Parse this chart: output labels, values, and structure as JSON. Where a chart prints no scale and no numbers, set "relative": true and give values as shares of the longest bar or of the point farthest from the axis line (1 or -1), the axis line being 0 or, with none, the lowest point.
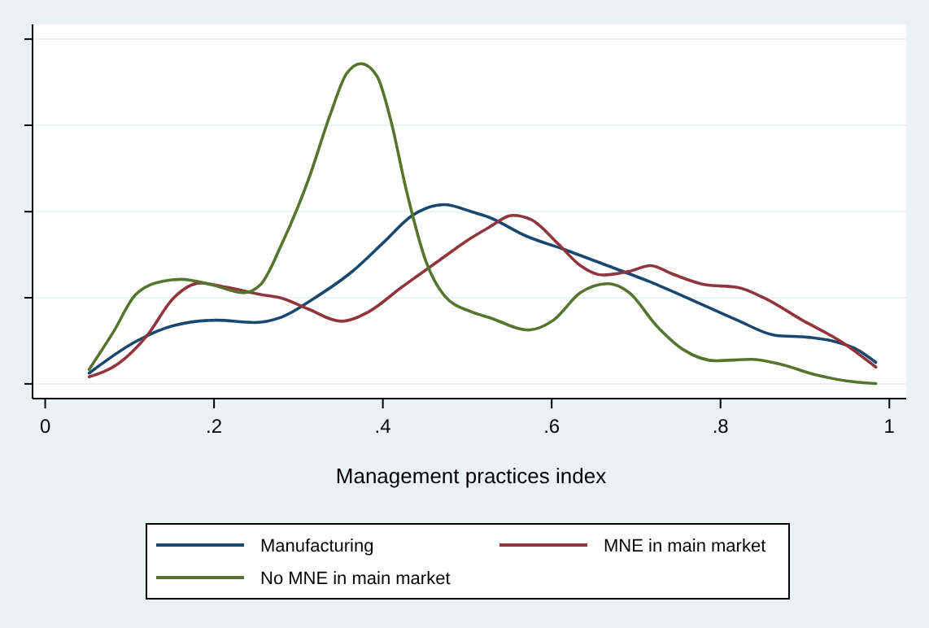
{
  "chart_data": {
    "type": "line",
    "xlabel": "Management practices index",
    "relative": true,
    "grid": "y",
    "legend": "bottom",
    "xlim": [
      -0.015,
      1.02
    ],
    "xticks": [
      0,
      {
        "value": 0.2,
        "label": ".2"
      },
      {
        "value": 0.4,
        "label": ".4"
      },
      {
        "value": 0.6,
        "label": ".6"
      },
      {
        "value": 0.8,
        "label": ".8"
      },
      1
    ],
    "series": [
      {
        "name": "Manufacturing",
        "color": "#1a476f",
        "x": [
          0.052,
          0.107,
          0.152,
          0.203,
          0.248,
          0.28,
          0.319,
          0.364,
          0.402,
          0.434,
          0.473,
          0.505,
          0.525,
          0.57,
          0.615,
          0.666,
          0.717,
          0.769,
          0.82,
          0.865,
          0.904,
          0.936,
          0.962,
          0.984
        ],
        "values": [
          0.076,
          0.17,
          0.218,
          0.234,
          0.227,
          0.243,
          0.3,
          0.38,
          0.469,
          0.545,
          0.579,
          0.558,
          0.542,
          0.485,
          0.445,
          0.397,
          0.348,
          0.291,
          0.234,
          0.189,
          0.183,
          0.17,
          0.146,
          0.108
        ]
      },
      {
        "name": "MNE in main market",
        "color": "#90353b",
        "x": [
          0.052,
          0.087,
          0.12,
          0.152,
          0.184,
          0.216,
          0.255,
          0.28,
          0.312,
          0.351,
          0.383,
          0.422,
          0.467,
          0.505,
          0.525,
          0.554,
          0.576,
          0.608,
          0.634,
          0.66,
          0.692,
          0.717,
          0.743,
          0.782,
          0.82,
          0.852,
          0.897,
          0.943,
          0.984
        ],
        "values": [
          0.065,
          0.105,
          0.186,
          0.3,
          0.345,
          0.332,
          0.311,
          0.3,
          0.267,
          0.231,
          0.259,
          0.332,
          0.413,
          0.48,
          0.51,
          0.547,
          0.534,
          0.461,
          0.397,
          0.369,
          0.38,
          0.397,
          0.372,
          0.34,
          0.332,
          0.3,
          0.234,
          0.17,
          0.094
        ]
      },
      {
        "name": "No MNE in main market",
        "color": "#55752f",
        "x": [
          0.052,
          0.081,
          0.107,
          0.139,
          0.161,
          0.197,
          0.235,
          0.255,
          0.28,
          0.312,
          0.338,
          0.357,
          0.374,
          0.393,
          0.409,
          0.428,
          0.451,
          0.473,
          0.505,
          0.525,
          0.573,
          0.602,
          0.634,
          0.666,
          0.692,
          0.724,
          0.756,
          0.795,
          0.836,
          0.872,
          0.91,
          0.949,
          0.984
        ],
        "values": [
          0.087,
          0.2,
          0.31,
          0.35,
          0.356,
          0.34,
          0.316,
          0.34,
          0.46,
          0.655,
          0.85,
          0.97,
          1,
          0.963,
          0.835,
          0.62,
          0.41,
          0.307,
          0.259,
          0.243,
          0.205,
          0.234,
          0.316,
          0.343,
          0.316,
          0.218,
          0.146,
          0.113,
          0.117,
          0.102,
          0.073,
          0.053,
          0.045
        ]
      }
    ]
  }
}
